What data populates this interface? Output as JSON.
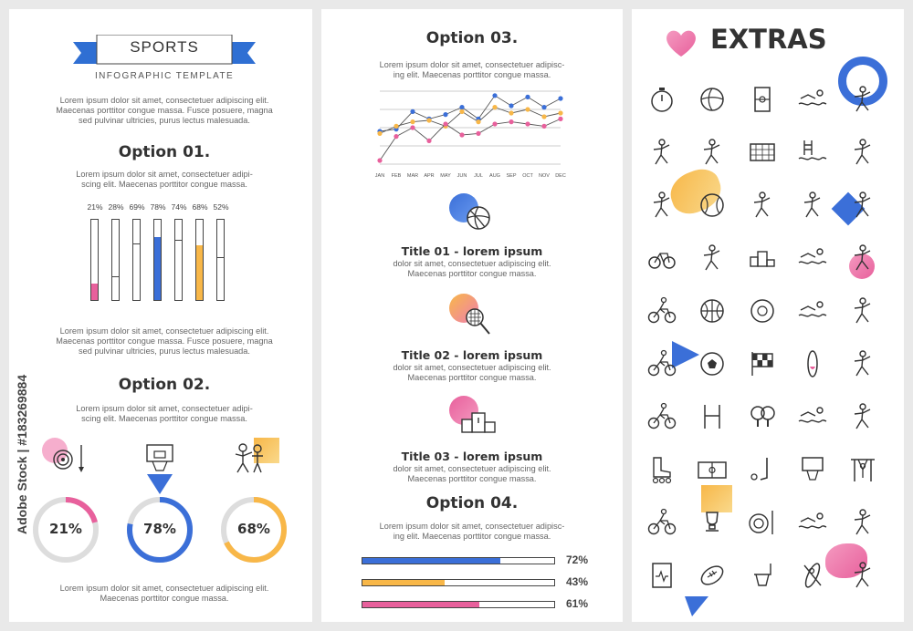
{
  "header": {
    "banner": "SPORTS",
    "subtitle": "INFOGRAPHIC TEMPLATE"
  },
  "intro": {
    "lines": [
      "Lorem ipsum dolor sit amet, consectetuer adipiscing elit.",
      "Maecenas porttitor congue massa. Fusce posuere, magna",
      "sed pulvinar ultricies, purus lectus malesuada."
    ]
  },
  "option01": {
    "title": "Option 01.",
    "lines": [
      "Lorem ipsum dolor sit amet, consectetuer adipi-",
      "scing elit. Maecenas porttitor congue massa."
    ],
    "bars": [
      {
        "label": "21%",
        "value": 21,
        "color": "#e8609c"
      },
      {
        "label": "28%",
        "value": 28,
        "color": "#ffffff"
      },
      {
        "label": "69%",
        "value": 69,
        "color": "#ffffff"
      },
      {
        "label": "78%",
        "value": 78,
        "color": "#3b6fd8"
      },
      {
        "label": "74%",
        "value": 74,
        "color": "#ffffff"
      },
      {
        "label": "68%",
        "value": 68,
        "color": "#f8b748"
      },
      {
        "label": "52%",
        "value": 52,
        "color": "#ffffff"
      }
    ]
  },
  "para2": {
    "lines": [
      "Lorem ipsum dolor sit amet, consectetuer adipiscing elit.",
      "Maecenas porttitor congue massa. Fusce posuere, magna",
      "sed pulvinar ultricies, purus lectus malesuada."
    ]
  },
  "option02": {
    "title": "Option 02.",
    "lines": [
      "Lorem ipsum dolor sit amet, consectetuer adipi-",
      "scing elit. Maecenas porttitor congue massa."
    ],
    "rings": [
      {
        "label": "21%",
        "value": 21,
        "color": "#e8609c"
      },
      {
        "label": "78%",
        "value": 78,
        "color": "#3b6fd8"
      },
      {
        "label": "68%",
        "value": 68,
        "color": "#f8b748"
      }
    ],
    "footer": [
      "Lorem ipsum dolor sit amet, consectetuer adipiscing elit.",
      "Maecenas porttitor congue massa."
    ]
  },
  "option03": {
    "title": "Option 03.",
    "lines": [
      "Lorem ipsum dolor sit amet, consectetuer adipisc-",
      "ing elit. Maecenas porttitor congue massa."
    ]
  },
  "chart_data": {
    "type": "line",
    "categories": [
      "JAN",
      "FEB",
      "MAR",
      "APR",
      "MAY",
      "JUN",
      "JUL",
      "AUG",
      "SEP",
      "OCT",
      "NOV",
      "DEC"
    ],
    "ylim": [
      0,
      100
    ],
    "grid": true,
    "series": [
      {
        "color": "#3b6fd8",
        "values": [
          45,
          48,
          72,
          62,
          68,
          78,
          62,
          94,
          80,
          92,
          78,
          90
        ]
      },
      {
        "color": "#f8b748",
        "values": [
          42,
          52,
          58,
          60,
          52,
          72,
          58,
          78,
          70,
          75,
          65,
          70
        ]
      },
      {
        "color": "#e8609c",
        "values": [
          5,
          38,
          50,
          32,
          55,
          40,
          42,
          55,
          58,
          55,
          52,
          62
        ]
      }
    ]
  },
  "items": [
    {
      "title": "Title 01 - lorem ipsum",
      "lines": [
        "dolor sit amet, consectetuer adipiscing elit.",
        "Maecenas porttitor congue massa."
      ],
      "icon": "volleyball-icon"
    },
    {
      "title": "Title 02 - lorem ipsum",
      "lines": [
        "dolor sit amet, consectetuer adipiscing elit.",
        "Maecenas porttitor congue massa."
      ],
      "icon": "tennis-icon"
    },
    {
      "title": "Title 03 - lorem ipsum",
      "lines": [
        "dolor sit amet, consectetuer adipiscing elit.",
        "Maecenas porttitor congue massa."
      ],
      "icon": "podium-icon"
    }
  ],
  "option04": {
    "title": "Option 04.",
    "lines": [
      "Lorem ipsum dolor sit amet, consectetuer adipisc-",
      "ing elit. Maecenas porttitor congue massa."
    ],
    "bars": [
      {
        "label": "72%",
        "value": 72,
        "color": "#3b6fd8"
      },
      {
        "label": "43%",
        "value": 43,
        "color": "#f8b748"
      },
      {
        "label": "61%",
        "value": 61,
        "color": "#e8609c"
      }
    ]
  },
  "extras": {
    "title": "EXTRAS",
    "icons": [
      "stopwatch",
      "volleyball",
      "field",
      "windsurf",
      "gymnast",
      "exercise-bike",
      "tennis",
      "goal-net",
      "pool-ladder",
      "cheerleader",
      "skateboard",
      "baseball",
      "climber",
      "badminton",
      "wrestling",
      "bicycle",
      "fencing",
      "podium",
      "surfer",
      "boxer",
      "cycling",
      "basketball",
      "billiard",
      "swimmer",
      "football-player",
      "bmx",
      "soccer-ball",
      "racing-flag",
      "surfboard",
      "karate",
      "atv",
      "rugby-posts",
      "ping-pong",
      "swimming",
      "golfer",
      "roller-skate",
      "soccer-field",
      "golf",
      "basketball-hoop",
      "pull-up-bar",
      "cyclist",
      "trophy",
      "archery",
      "kite-surfer",
      "weightlifter",
      "health-chart",
      "american-football",
      "basketball-net",
      "kayak",
      "gymnastics-horse"
    ]
  },
  "watermark": {
    "text": "Adobe Stock | #183269884"
  }
}
